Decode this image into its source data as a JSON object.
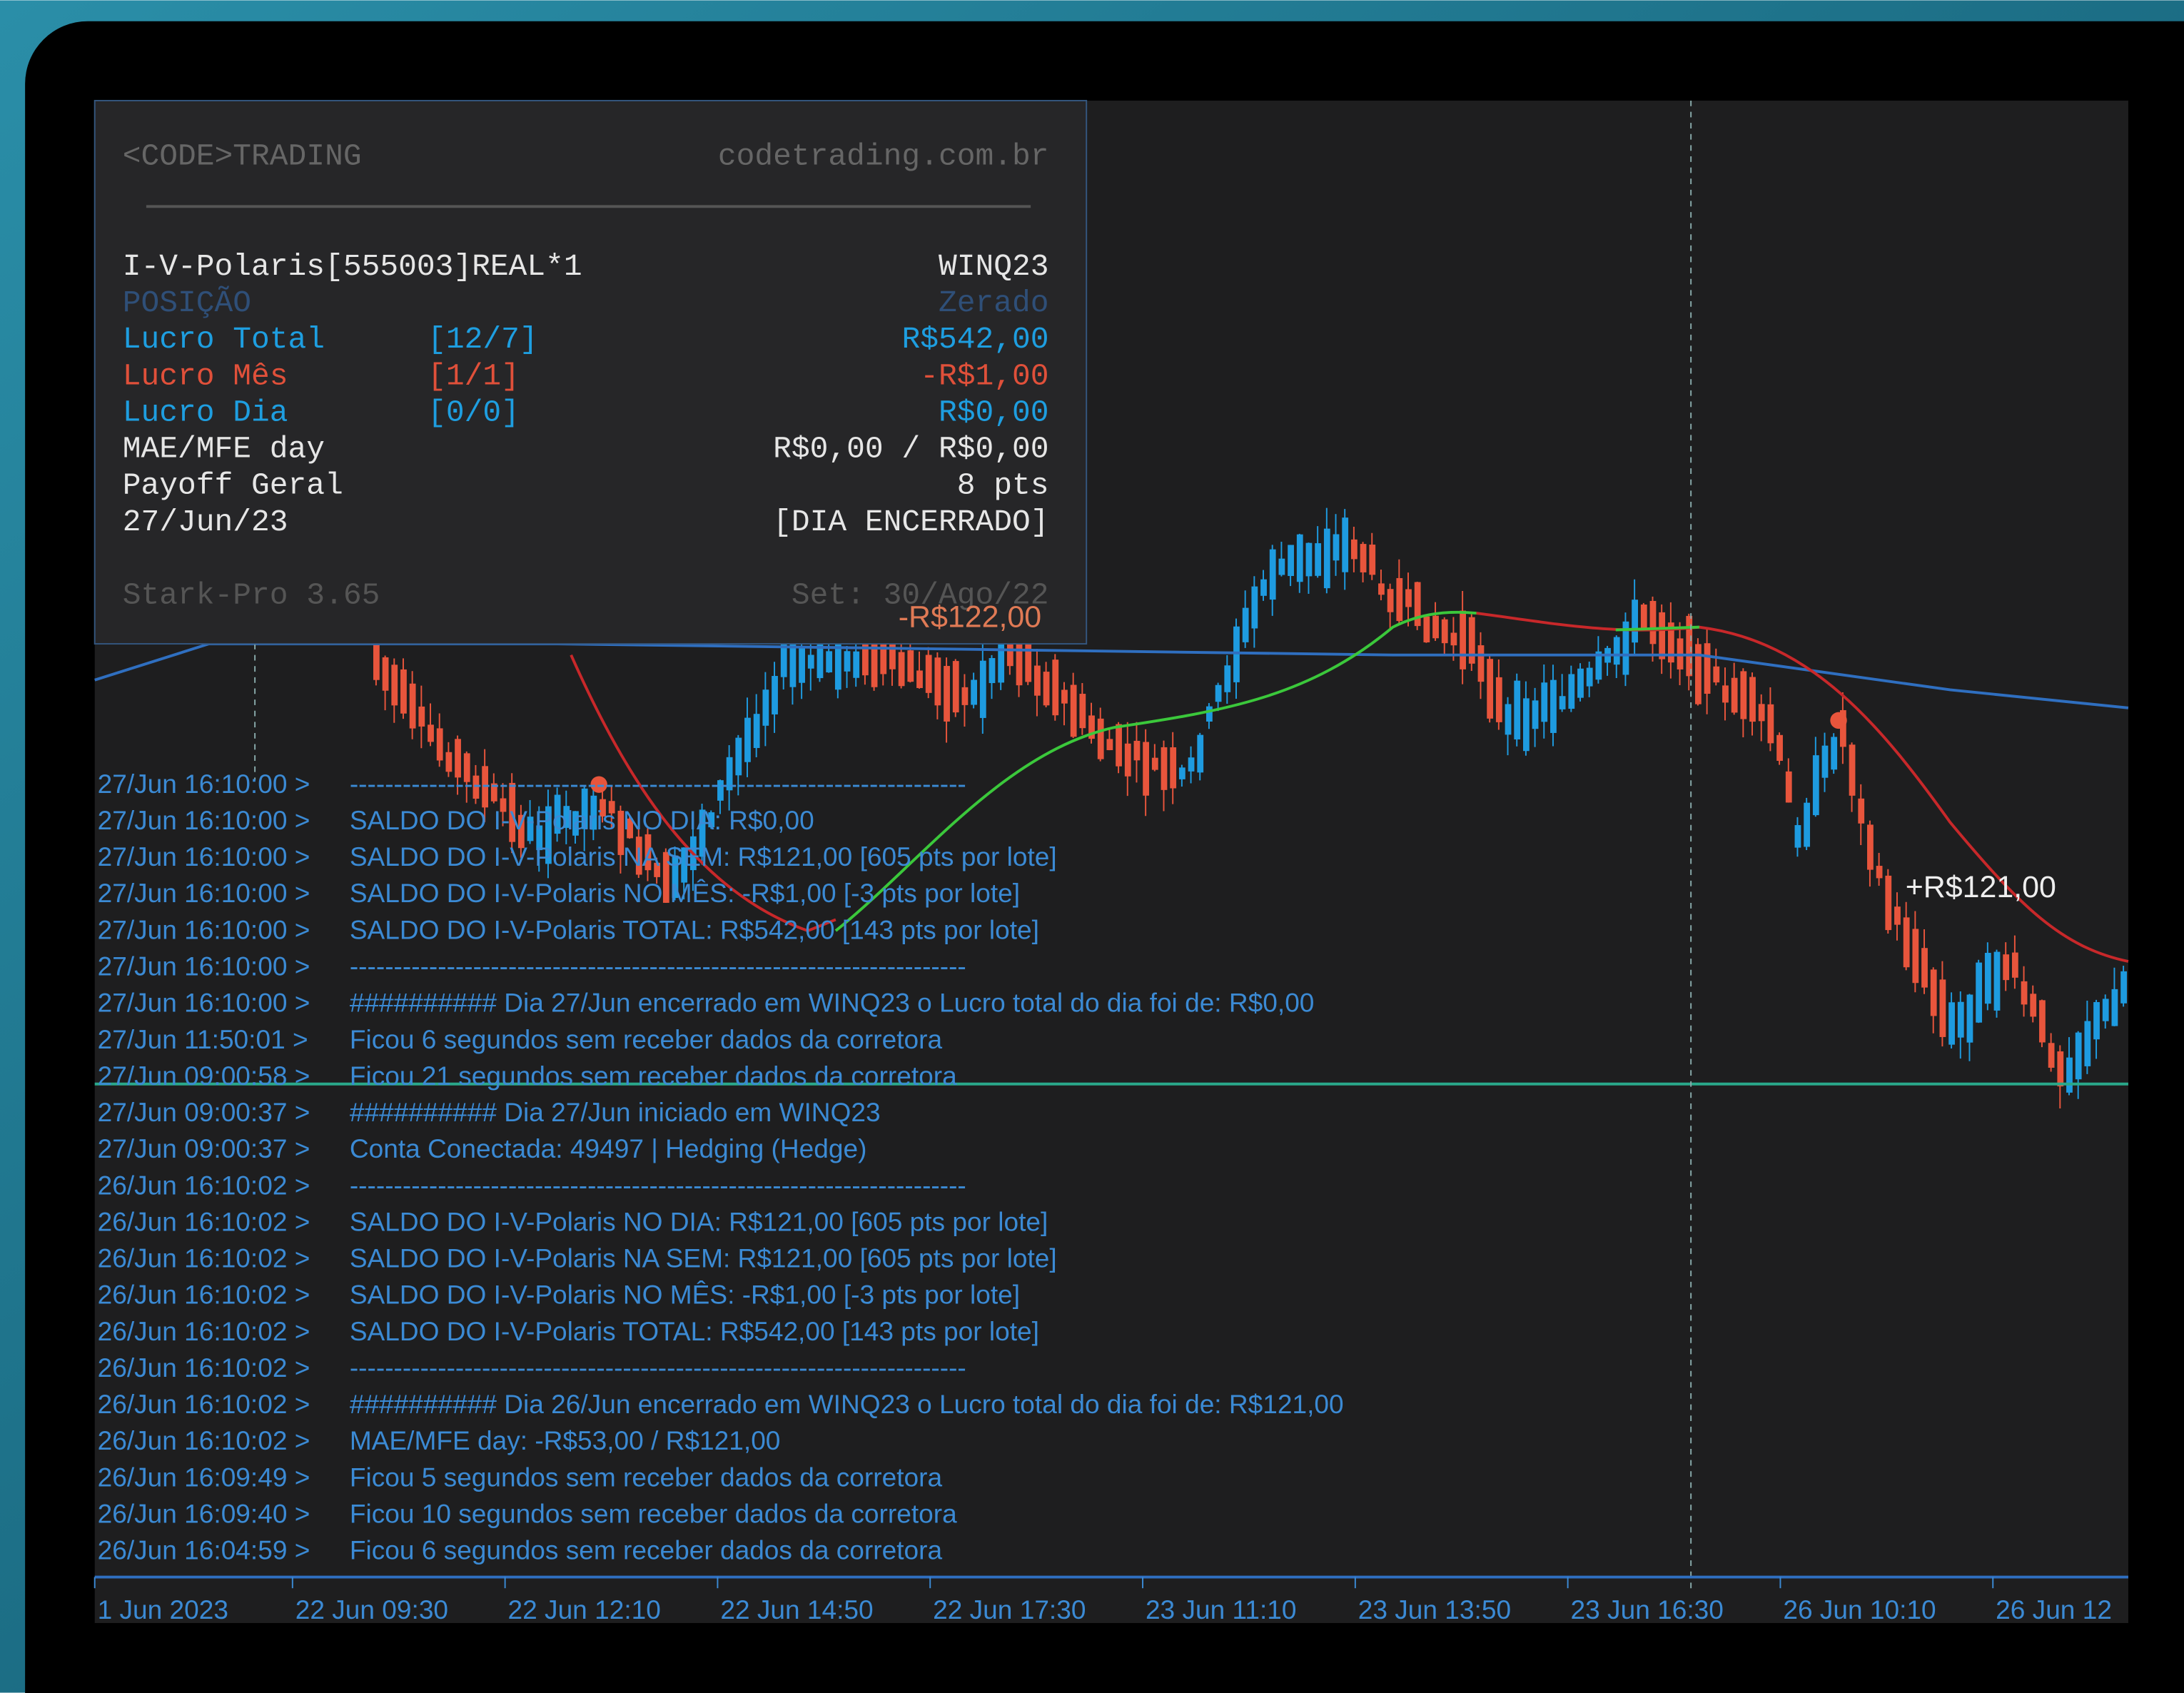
{
  "panel": {
    "brand": "<CODE>TRADING",
    "site": "codetrading.com.br",
    "rows": [
      {
        "label": "I-V-Polaris[555003]REAL*1",
        "value": "WINQ23",
        "color": "#e6e6e6"
      },
      {
        "label": "POSIÇÃO",
        "value": "Zerado",
        "color": "#2f4f78"
      },
      {
        "label": "Lucro Total",
        "count": "[12/7]",
        "value": "R$542,00",
        "color": "#1e9ee0"
      },
      {
        "label": "Lucro Mês",
        "count": "[1/1]",
        "value": "-R$1,00",
        "color": "#e0503a"
      },
      {
        "label": "Lucro Dia",
        "count": "[0/0]",
        "value": "R$0,00",
        "color": "#1e9ee0"
      },
      {
        "label": "MAE/MFE day",
        "value": "R$0,00 / R$0,00",
        "color": "#e6e6e6"
      },
      {
        "label": "Payoff Geral",
        "value": "8 pts",
        "color": "#e6e6e6"
      },
      {
        "label": "27/Jun/23",
        "value": "[DIA ENCERRADO]",
        "color": "#e6e6e6"
      }
    ],
    "version": "Stark-Pro 3.65",
    "set": "Set: 30/Ago/22"
  },
  "annotations": [
    "-R$122,00",
    "+R$121,00"
  ],
  "log": [
    [
      "27/Jun 16:10:00 >",
      "----------------------------------------------------------------------"
    ],
    [
      "27/Jun 16:10:00 >",
      "SALDO DO I-V-Polaris NO DIA:  R$0,00"
    ],
    [
      "27/Jun 16:10:00 >",
      "SALDO DO I-V-Polaris NA SEM:  R$121,00 [605 pts por lote]"
    ],
    [
      "27/Jun 16:10:00 >",
      "SALDO DO I-V-Polaris NO MÊS:  -R$1,00 [-3 pts por lote]"
    ],
    [
      "27/Jun 16:10:00 >",
      "SALDO DO I-V-Polaris TOTAL:   R$542,00 [143 pts por lote]"
    ],
    [
      "27/Jun 16:10:00 >",
      "----------------------------------------------------------------------"
    ],
    [
      "27/Jun 16:10:00 >",
      "########## Dia 27/Jun encerrado em WINQ23 o Lucro total do dia foi de: R$0,00"
    ],
    [
      "27/Jun 11:50:01 >",
      "Ficou 6 segundos sem receber dados da corretora"
    ],
    [
      "27/Jun 09:00:58 >",
      "Ficou 21 segundos sem receber dados da corretora"
    ],
    [
      "27/Jun 09:00:37 >",
      "########## Dia 27/Jun iniciado em WINQ23"
    ],
    [
      "27/Jun 09:00:37 >",
      "Conta Conectada: 49497 | Hedging (Hedge)"
    ],
    [
      "26/Jun 16:10:02 >",
      "----------------------------------------------------------------------"
    ],
    [
      "26/Jun 16:10:02 >",
      "SALDO DO I-V-Polaris NO DIA:  R$121,00 [605 pts por lote]"
    ],
    [
      "26/Jun 16:10:02 >",
      "SALDO DO I-V-Polaris NA SEM:  R$121,00 [605 pts por lote]"
    ],
    [
      "26/Jun 16:10:02 >",
      "SALDO DO I-V-Polaris NO MÊS:  -R$1,00 [-3 pts por lote]"
    ],
    [
      "26/Jun 16:10:02 >",
      "SALDO DO I-V-Polaris TOTAL:   R$542,00 [143 pts por lote]"
    ],
    [
      "26/Jun 16:10:02 >",
      "----------------------------------------------------------------------"
    ],
    [
      "26/Jun 16:10:02 >",
      "########## Dia 26/Jun encerrado em WINQ23 o Lucro total do dia foi de: R$121,00"
    ],
    [
      "26/Jun 16:10:02 >",
      "MAE/MFE day: -R$53,00 / R$121,00"
    ],
    [
      "26/Jun 16:09:49 >",
      "Ficou 5 segundos sem receber dados da corretora"
    ],
    [
      "26/Jun 16:09:40 >",
      "Ficou 10 segundos sem receber dados da corretora"
    ],
    [
      "26/Jun 16:04:59 >",
      "Ficou 6 segundos sem receber dados da corretora"
    ]
  ],
  "x_axis": [
    "1 Jun 2023",
    "22 Jun 09:30",
    "22 Jun 12:10",
    "22 Jun 14:50",
    "22 Jun 17:30",
    "23 Jun 11:10",
    "23 Jun 13:50",
    "23 Jun 16:30",
    "26 Jun 10:10",
    "26 Jun 12"
  ]
}
